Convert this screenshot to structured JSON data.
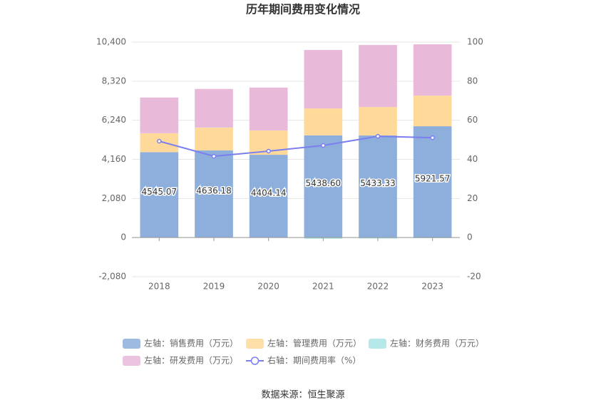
{
  "chart_data": {
    "type": "bar",
    "title": "历年期间费用变化情况",
    "categories": [
      "2018",
      "2019",
      "2020",
      "2021",
      "2022",
      "2023"
    ],
    "series": [
      {
        "name": "左轴：销售费用（万元）",
        "color": "#8eaedb",
        "values": [
          4545.07,
          4636.18,
          4404.14,
          5438.6,
          5433.33,
          5921.57
        ],
        "value_labels": [
          "4545.07",
          "4636.18",
          "4404.14",
          "5438.60",
          "5433.33",
          "5921.57"
        ]
      },
      {
        "name": "左轴：管理费用（万元）",
        "color": "#fed999",
        "values": [
          1000,
          1210,
          1290,
          1430,
          1510,
          1630
        ]
      },
      {
        "name": "左轴：财务费用（万元）",
        "color": "#a9e3e5",
        "values": [
          5,
          10,
          5,
          -60,
          -50,
          -30
        ]
      },
      {
        "name": "左轴：研发费用（万元）",
        "color": "#e8b9d9",
        "values": [
          1900,
          2050,
          2280,
          3110,
          3300,
          2730
        ]
      },
      {
        "name": "右轴：期间费用率（%）",
        "color": "#7b7ff0",
        "type": "line",
        "axis": "y2",
        "values": [
          49.3,
          41.6,
          44.2,
          47.1,
          51.8,
          51.1
        ]
      }
    ],
    "ylim": [
      -2080,
      10400
    ],
    "yticks": [
      {
        "value": -2080,
        "label": "-2,080"
      },
      0,
      {
        "value": 2080,
        "label": "2,080"
      },
      {
        "value": 4160,
        "label": "4,160"
      },
      {
        "value": 6240,
        "label": "6,240"
      },
      {
        "value": 8320,
        "label": "8,320"
      },
      {
        "value": 10400,
        "label": "10,400"
      }
    ],
    "y2lim": [
      -20,
      100
    ],
    "y2ticks": [
      -20,
      0,
      20,
      40,
      60,
      80,
      100
    ],
    "grid": true,
    "source": "数据来源：恒生聚源"
  }
}
